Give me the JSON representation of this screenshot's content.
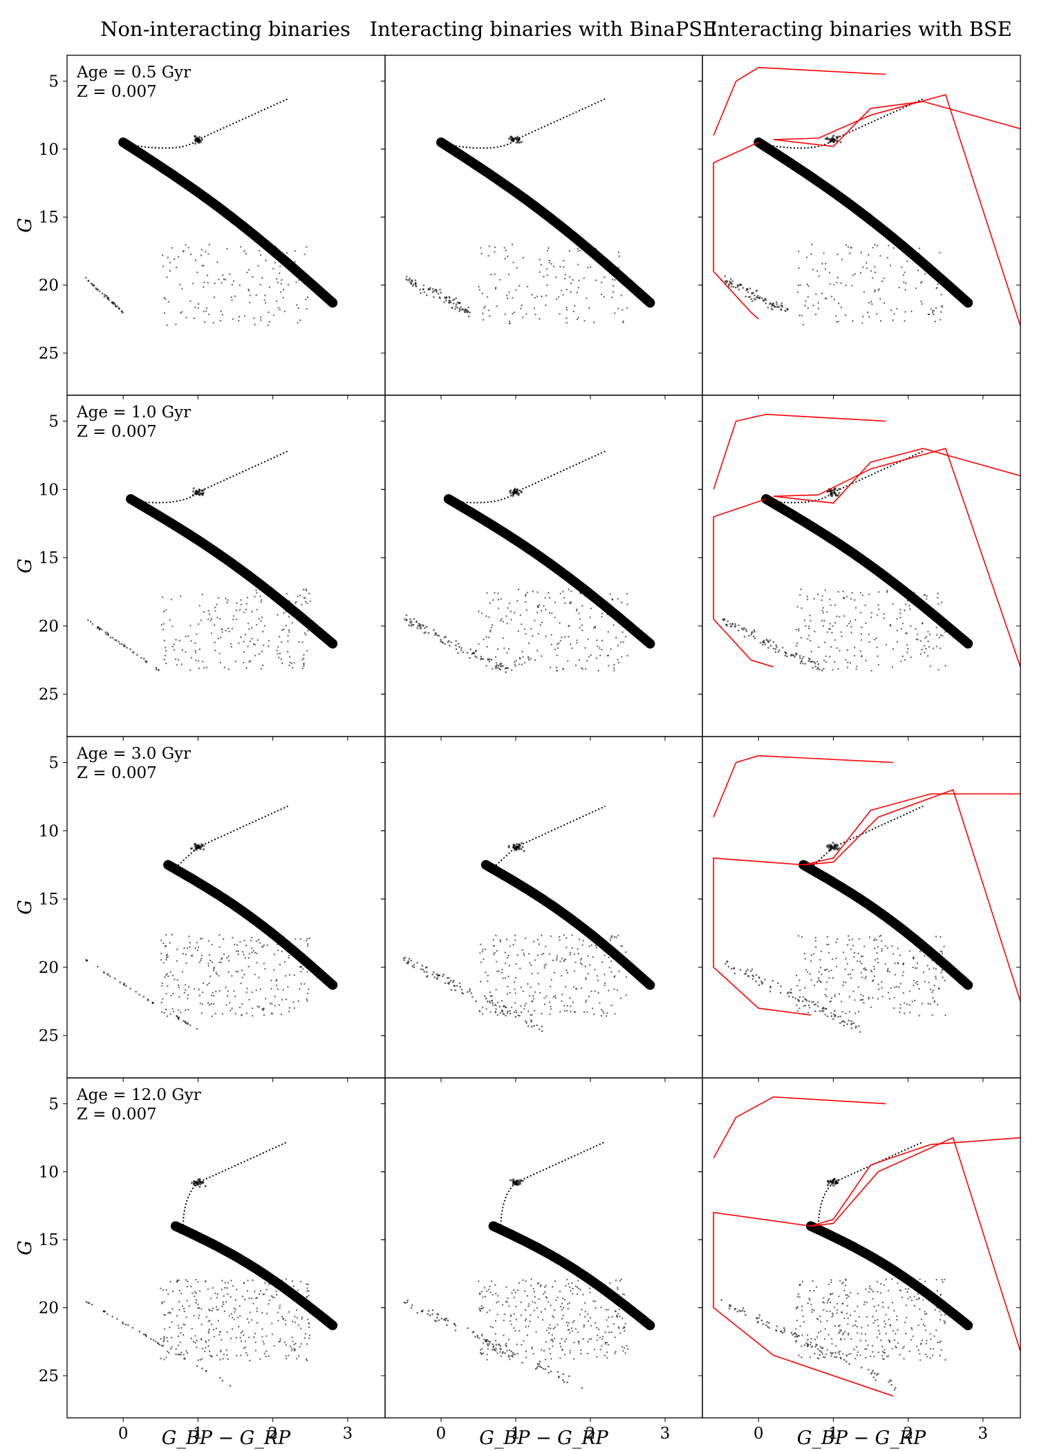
{
  "figure": {
    "column_titles": [
      "Non-interacting binaries",
      "Interacting binaries with BinaPSE",
      "Interacting binaries with BSE"
    ],
    "ylabel": "G",
    "xlabel": "G_BP − G_RP",
    "metallicity_label": "Z = 0.007",
    "colors": {
      "points": "#000000",
      "bse_track": "#ff0000",
      "frame": "#000000"
    }
  },
  "chart_data": {
    "type": "scatter",
    "xlim": [
      -0.75,
      3.5
    ],
    "ylim": [
      28.1,
      3.1
    ],
    "x_ticks": [
      0,
      1,
      2,
      3
    ],
    "y_ticks": [
      5,
      10,
      15,
      20,
      25
    ],
    "rows": [
      {
        "age_label": "Age = 0.5 Gyr",
        "red_clump": [
          1.0,
          9.3
        ],
        "turnoff": [
          0.0,
          9.5
        ],
        "bse_loop": [
          [
            0.0,
            9.5
          ],
          [
            -0.6,
            11.0
          ],
          [
            -0.6,
            19.0
          ],
          [
            -0.1,
            22.0
          ],
          [
            0.0,
            22.5
          ]
        ],
        "bse_upper": [
          [
            -0.6,
            9.0
          ],
          [
            -0.3,
            5.0
          ],
          [
            0.0,
            4.0
          ],
          [
            1.7,
            4.5
          ]
        ],
        "bse_branch": [
          [
            0.2,
            9.3
          ],
          [
            1.0,
            9.8
          ],
          [
            1.5,
            7.0
          ],
          [
            2.2,
            6.5
          ],
          [
            3.5,
            8.5
          ]
        ],
        "bse_branch2": [
          [
            0.2,
            9.3
          ],
          [
            0.8,
            9.2
          ],
          [
            1.5,
            7.5
          ],
          [
            2.5,
            6.0
          ],
          [
            3.5,
            23.0
          ]
        ]
      },
      {
        "age_label": "Age = 1.0 Gyr",
        "red_clump": [
          1.0,
          10.2
        ],
        "turnoff": [
          0.1,
          10.7
        ],
        "bse_loop": [
          [
            0.1,
            10.7
          ],
          [
            -0.6,
            12.0
          ],
          [
            -0.6,
            19.5
          ],
          [
            -0.1,
            22.5
          ],
          [
            0.2,
            23.0
          ]
        ],
        "bse_upper": [
          [
            -0.6,
            10.0
          ],
          [
            -0.3,
            5.0
          ],
          [
            0.1,
            4.5
          ],
          [
            1.7,
            5.0
          ]
        ],
        "bse_branch": [
          [
            0.2,
            10.5
          ],
          [
            1.0,
            11.0
          ],
          [
            1.5,
            8.0
          ],
          [
            2.2,
            7.0
          ],
          [
            3.5,
            9.0
          ]
        ],
        "bse_branch2": [
          [
            0.2,
            10.5
          ],
          [
            0.8,
            10.4
          ],
          [
            1.5,
            8.5
          ],
          [
            2.5,
            7.0
          ],
          [
            3.5,
            23.0
          ]
        ]
      },
      {
        "age_label": "Age = 3.0 Gyr",
        "red_clump": [
          1.0,
          11.2
        ],
        "turnoff": [
          0.6,
          12.5
        ],
        "bse_loop": [
          [
            0.6,
            12.5
          ],
          [
            -0.6,
            12.0
          ],
          [
            -0.6,
            20.0
          ],
          [
            0.0,
            23.0
          ],
          [
            0.7,
            23.5
          ]
        ],
        "bse_upper": [
          [
            -0.6,
            9.0
          ],
          [
            -0.3,
            5.0
          ],
          [
            0.0,
            4.5
          ],
          [
            1.8,
            5.0
          ]
        ],
        "bse_branch": [
          [
            0.6,
            12.5
          ],
          [
            1.0,
            12.0
          ],
          [
            1.5,
            8.5
          ],
          [
            2.3,
            7.3
          ],
          [
            3.5,
            7.3
          ]
        ],
        "bse_branch2": [
          [
            0.6,
            12.5
          ],
          [
            1.0,
            12.3
          ],
          [
            1.6,
            9.0
          ],
          [
            2.6,
            7.0
          ],
          [
            3.5,
            22.5
          ]
        ]
      },
      {
        "age_label": "Age = 12.0 Gyr",
        "red_clump": [
          1.0,
          10.8
        ],
        "turnoff": [
          0.7,
          14.0
        ],
        "bse_loop": [
          [
            0.7,
            14.0
          ],
          [
            -0.6,
            13.0
          ],
          [
            -0.6,
            20.0
          ],
          [
            0.2,
            23.5
          ],
          [
            1.8,
            26.5
          ]
        ],
        "bse_upper": [
          [
            -0.6,
            9.0
          ],
          [
            -0.3,
            6.0
          ],
          [
            0.2,
            4.5
          ],
          [
            1.7,
            5.0
          ]
        ],
        "bse_branch": [
          [
            0.7,
            14.0
          ],
          [
            1.0,
            13.5
          ],
          [
            1.5,
            9.5
          ],
          [
            2.3,
            8.0
          ],
          [
            3.5,
            7.5
          ]
        ],
        "bse_branch2": [
          [
            0.7,
            14.0
          ],
          [
            1.0,
            13.8
          ],
          [
            1.6,
            10.0
          ],
          [
            2.6,
            7.5
          ],
          [
            3.5,
            23.2
          ]
        ]
      }
    ]
  }
}
